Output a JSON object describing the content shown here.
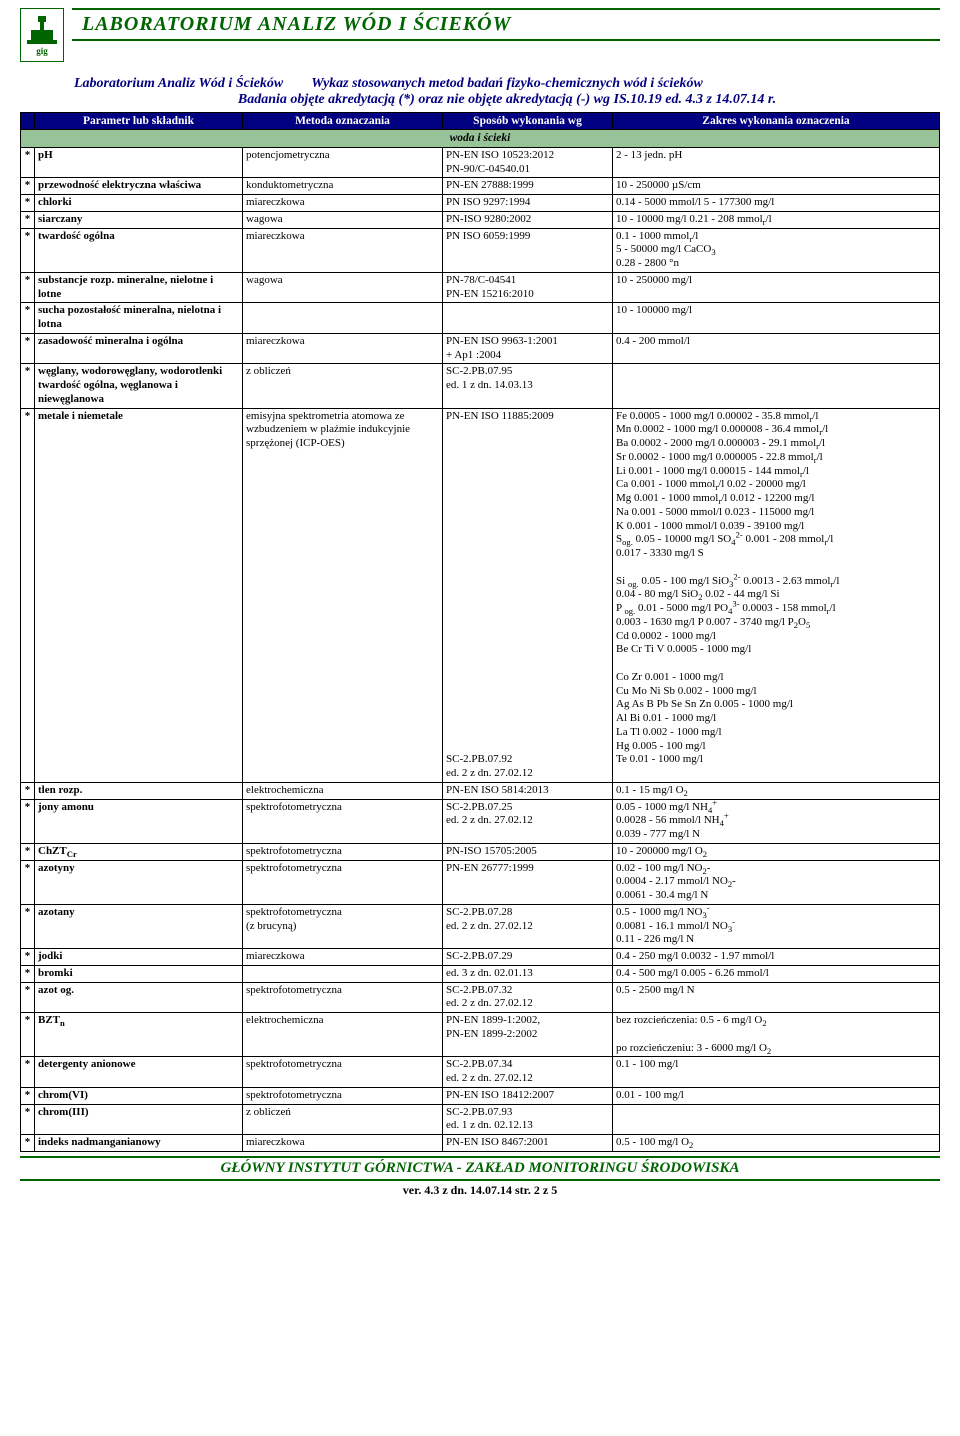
{
  "header": {
    "banner": "LABORATORIUM   ANALIZ   WÓD   I   ŚCIEKÓW",
    "lab_name": "Laboratorium Analiz Wód i Ścieków",
    "subtitle_right": "Wykaz stosowanych metod badań fizyko-chemicznych wód i ścieków",
    "subtitle_line2": "Badania objęte akredytacją (*) oraz nie objęte akredytacją (-)  wg  IS.10.19  ed.  4.3   z  14.07.14 r."
  },
  "columns": {
    "c1": "Parametr lub składnik",
    "c2": "Metoda oznaczania",
    "c3": "Sposób wykonania wg",
    "c4": "Zakres wykonania oznaczenia"
  },
  "section": "woda i ścieki",
  "rows": [
    {
      "s": "*",
      "p": "pH",
      "m": "potencjometryczna",
      "w": "PN-EN ISO 10523:2012\nPN-90/C-04540.01",
      "z": "2 - 13 jedn. pH"
    },
    {
      "s": "*",
      "p": "przewodność elektryczna właściwa",
      "m": "konduktometryczna",
      "w": "PN-EN 27888:1999",
      "z": "10 - 250000 µS/cm"
    },
    {
      "s": "*",
      "p": "chlorki",
      "m": "miareczkowa",
      "w": "PN ISO 9297:1994",
      "z": "0.14 - 5000 mmol/l    5 - 177300 mg/l"
    },
    {
      "s": "*",
      "p": "siarczany",
      "m": "wagowa",
      "w": "PN-ISO 9280:2002",
      "z": "10 - 10000 mg/l    0.21 - 208 mmolr/l"
    },
    {
      "s": "*",
      "p": "twardość ogólna",
      "m": "miareczkowa",
      "w": "PN ISO 6059:1999",
      "z": "0.1 - 1000 mmolr/l\n5 - 50000 mg/l CaCO3\n0.28 - 2800 °n"
    },
    {
      "s": "*",
      "p": "substancje rozp. mineralne, nielotne i lotne",
      "m": "wagowa",
      "w": "PN-78/C-04541\nPN-EN 15216:2010",
      "z": "10 - 250000 mg/l"
    },
    {
      "s": "*",
      "p": "sucha pozostałość mineralna, nielotna i lotna",
      "m": "",
      "w": "",
      "z": "10 - 100000 mg/l"
    },
    {
      "s": "*",
      "p": "zasadowość mineralna i ogólna",
      "m": "miareczkowa",
      "w": "PN-EN ISO 9963-1:2001\n+ Ap1 :2004",
      "z": "0.4 - 200 mmol/l"
    },
    {
      "s": "*",
      "p": "węglany, wodorowęglany, wodorotlenki\ntwardość ogólna, węglanowa i niewęglanowa",
      "m": "z obliczeń",
      "w": "SC-2.PB.07.95\ned. 1 z dn. 14.03.13",
      "z": ""
    }
  ],
  "metals": {
    "s": "*",
    "p": "metale i niemetale",
    "m": "emisyjna spektrometria atomowa ze wzbudzeniem w plaźmie indukcyjnie sprzężonej (ICP-OES)",
    "w": "PN-EN ISO 11885:2009\n\n\n\n\n\n\n\n\n\n\n\n\n\n\n\n\n\n\n\n\n\n\n\n\nSC-2.PB.07.92\ned. 2 z dn. 27.02.12",
    "z": "Fe  0.0005 - 1000 mg/l      0.00002 - 35.8 mmolr/l\nMn 0.0002 - 1000 mg/l     0.000008 - 36.4 mmolr/l\nBa 0.0002 - 2000 mg/l     0.000003 - 29.1 mmolr/l\nSr  0.0002 - 1000 mg/l     0.000005 - 22.8 mmolr/l\nLi  0.001 - 1000 mg/l       0.00015  - 144 mmolr/l\nCa  0.001 - 1000 mmolr/l      0.02 - 20000 mg/l\nMg 0.001 - 1000 mmolr/l     0.012 - 12200 mg/l\nNa  0.001 - 5000 mmol/l      0.023 - 115000 mg/l\nK    0.001 - 1000 mmol/l      0.039 - 39100 mg/l\nSog.  0.05 - 10000 mg/l SO42-   0.001 - 208 mmolr/l\n       0.017 - 3330 mg/l S\n\nSi og.  0.05 - 100 mg/l SiO32-    0.0013 - 2.63 mmolr/l\n        0.04 - 80 mg/l SiO2        0.02 - 44 mg/l Si\nP og.  0.01 - 5000 mg/l PO43-   0.0003 - 158 mmolr/l\n        0.003 - 1630 mg/l P        0.007 - 3740 mg/l P2O5\nCd                                       0.0002 - 1000 mg/l\nBe Cr Ti V                            0.0005 - 1000 mg/l\n\nCo Zr                                   0.001 - 1000 mg/l\nCu Mo Ni Sb                         0.002 - 1000 mg/l\nAg As B Pb Se Sn Zn             0.005 - 1000 mg/l\nAl Bi                                     0.01 - 1000 mg/l\nLa Tl                                     0.002 - 1000 mg/l\nHg                                         0.005 - 100 mg/l\nTe                                          0.01 - 1000 mg/l"
  },
  "rows2": [
    {
      "s": "*",
      "p": "tlen rozp.",
      "m": "elektrochemiczna",
      "w": "PN-EN ISO 5814:2013",
      "z": "0.1 - 15 mg/l O2"
    },
    {
      "s": "*",
      "p": "jony amonu",
      "m": "spektrofotometryczna",
      "w": "SC-2.PB.07.25\ned. 2 z dn. 27.02.12",
      "z": "0.05 - 1000 mg/l NH4+\n0.0028 - 56 mmol/l NH4+\n0.039 - 777 mg/l N"
    },
    {
      "s": "*",
      "p": "ChZTCr",
      "m": "spektrofotometryczna",
      "w": "PN-ISO 15705:2005",
      "z": "10 - 200000 mg/l O2"
    },
    {
      "s": "*",
      "p": "azotyny",
      "m": "spektrofotometryczna",
      "w": "PN-EN 26777:1999",
      "z": "0.02 - 100 mg/l NO2-\n0.0004 - 2.17 mmol/l NO2-\n0.0061 - 30.4 mg/l N"
    },
    {
      "s": "*",
      "p": "azotany",
      "m": "spektrofotometryczna\n(z brucyną)",
      "w": "SC-2.PB.07.28\ned. 2 z dn. 27.02.12",
      "z": "0.5 - 1000 mg/l NO3-\n0.0081 - 16.1 mmol/l NO3-\n0.11 - 226 mg/l N"
    },
    {
      "s": "*",
      "p": "jodki",
      "m": "miareczkowa",
      "w": "SC-2.PB.07.29",
      "z": "0.4 - 250 mg/l   0.0032 - 1.97 mmol/l"
    },
    {
      "s": "*",
      "p": "bromki",
      "m": "",
      "w": "ed. 3 z dn. 02.01.13",
      "z": "0.4 - 500 mg/l   0.005 - 6.26 mmol/l"
    },
    {
      "s": "*",
      "p": "azot og.",
      "m": "spektrofotometryczna",
      "w": "SC-2.PB.07.32\ned. 2 z dn. 27.02.12",
      "z": "0.5 - 2500 mg/l N"
    },
    {
      "s": "*",
      "p": "BZTn",
      "m": "elektrochemiczna",
      "w": "PN-EN 1899-1:2002,\nPN-EN 1899-2:2002",
      "z": "bez rozcieńczenia: 0.5 - 6 mg/l O2\n\npo rozcieńczeniu: 3 - 6000 mg/l O2"
    },
    {
      "s": "*",
      "p": "detergenty anionowe",
      "m": "spektrofotometryczna",
      "w": "SC-2.PB.07.34\ned. 2 z dn. 27.02.12",
      "z": "0.1 - 100 mg/l"
    },
    {
      "s": "*",
      "p": "chrom(VI)",
      "m": "spektrofotometryczna",
      "w": "PN-EN ISO 18412:2007",
      "z": "0.01 - 100 mg/l"
    },
    {
      "s": "*",
      "p": "chrom(III)",
      "m": "z obliczeń",
      "w": "SC-2.PB.07.93\ned. 1 z dn. 02.12.13",
      "z": ""
    },
    {
      "s": "*",
      "p": "indeks nadmanganianowy",
      "m": "miareczkowa",
      "w": "PN-EN ISO 8467:2001",
      "z": "0.5 - 100 mg/l O2"
    }
  ],
  "footer": {
    "line": "GŁÓWNY INSTYTUT GÓRNICTWA   -   ZAKŁAD MONITORINGU ŚRODOWISKA",
    "ver": "ver.  4.3  z dn. 14.07.14   str.  2  z  5"
  }
}
